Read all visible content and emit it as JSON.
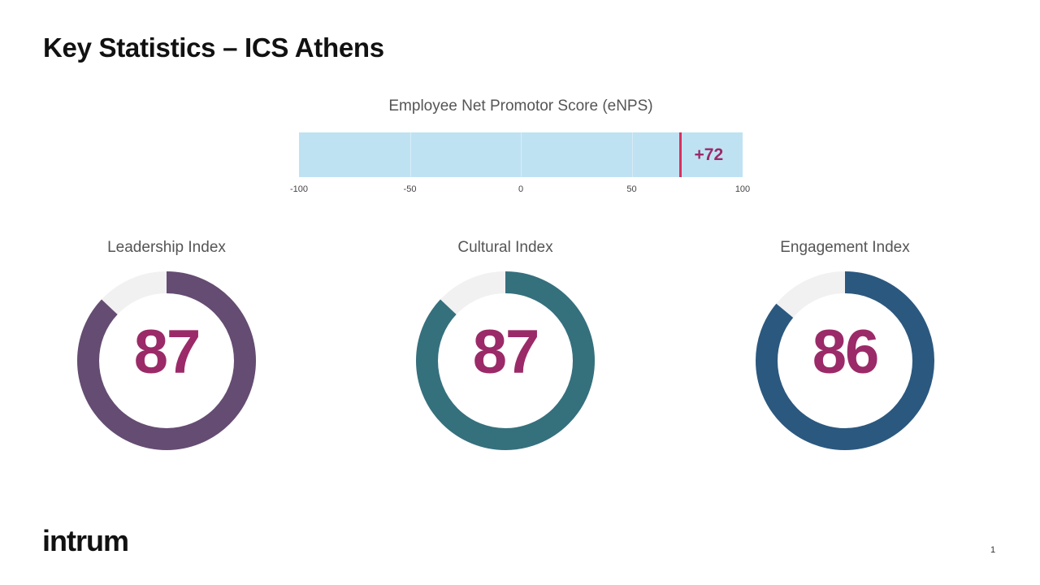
{
  "header": {
    "title": "Key Statistics – ICS Athens"
  },
  "chart_data": [
    {
      "type": "bar",
      "title": "Employee Net Promotor Score (eNPS)",
      "xlim": [
        -100,
        100
      ],
      "ticks": [
        "-100",
        "-50",
        "0",
        "50",
        "100"
      ],
      "tick_values": [
        -100,
        -50,
        0,
        50,
        100
      ],
      "value": 72,
      "value_label": "+72",
      "colors": {
        "track": "#bfe2f3",
        "marker": "#d9305f",
        "label": "#9b2a68"
      }
    },
    {
      "type": "pie",
      "title": "Leadership Index",
      "value": 87,
      "max": 100,
      "value_label": "87",
      "colors": {
        "fill": "#654c72",
        "remainder": "#f1f1f1"
      }
    },
    {
      "type": "pie",
      "title": "Cultural Index",
      "value": 87,
      "max": 100,
      "value_label": "87",
      "colors": {
        "fill": "#35707d",
        "remainder": "#f1f1f1"
      }
    },
    {
      "type": "pie",
      "title": "Engagement Index",
      "value": 86,
      "max": 100,
      "value_label": "86",
      "colors": {
        "fill": "#2b587f",
        "remainder": "#f1f1f1"
      }
    }
  ],
  "footer": {
    "logo_text": "intrum",
    "page_number": "1"
  }
}
